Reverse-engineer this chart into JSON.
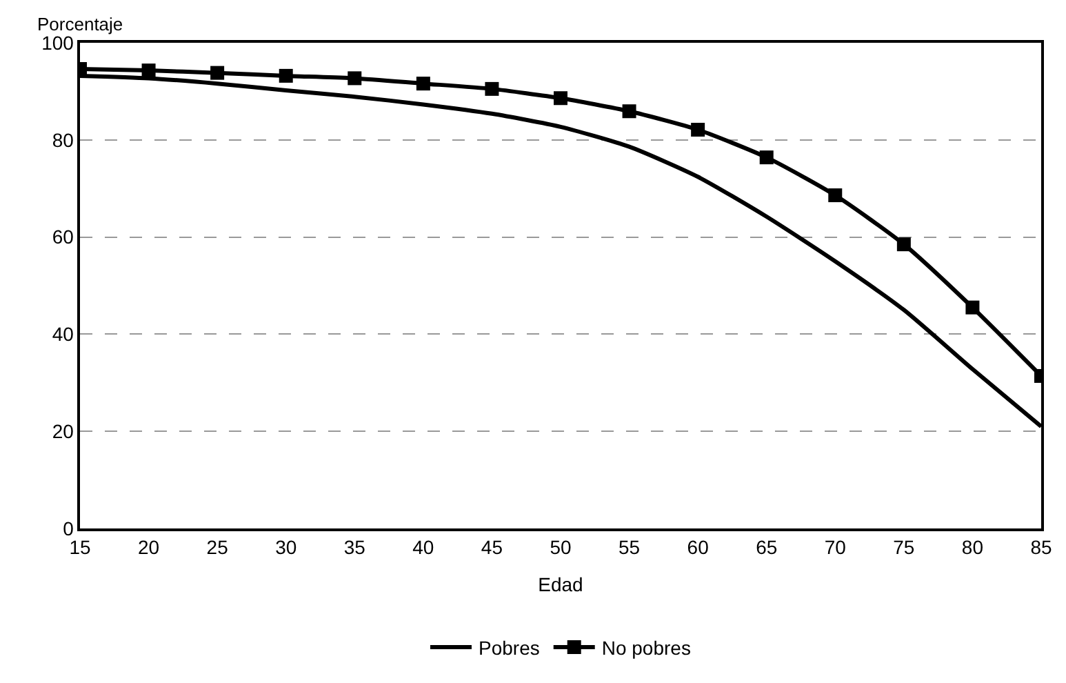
{
  "chart_data": {
    "type": "line",
    "xlabel": "Edad",
    "ylabel": "Porcentaje",
    "x": [
      15,
      20,
      25,
      30,
      35,
      40,
      45,
      50,
      55,
      60,
      65,
      70,
      75,
      80,
      85
    ],
    "series": [
      {
        "name": "Pobres",
        "color": "#000000",
        "marker": "none",
        "values": [
          93.2,
          92.7,
          91.6,
          90.2,
          88.9,
          87.3,
          85.4,
          82.7,
          78.6,
          72.4,
          64.2,
          55.0,
          45.0,
          32.8,
          21.0
        ]
      },
      {
        "name": "No pobres",
        "color": "#000000",
        "marker": "square",
        "values": [
          94.6,
          94.3,
          93.8,
          93.2,
          92.7,
          91.6,
          90.5,
          88.6,
          85.9,
          82.1,
          76.4,
          68.6,
          58.5,
          45.5,
          31.4
        ]
      }
    ],
    "xlim": [
      15,
      85
    ],
    "xticks": [
      15,
      20,
      25,
      30,
      35,
      40,
      45,
      50,
      55,
      60,
      65,
      70,
      75,
      80,
      85
    ],
    "ylim": [
      0,
      100
    ],
    "yticks": [
      0,
      20,
      40,
      60,
      80,
      100
    ],
    "grid": "y",
    "line_style": "solid",
    "legend": "bottom"
  }
}
